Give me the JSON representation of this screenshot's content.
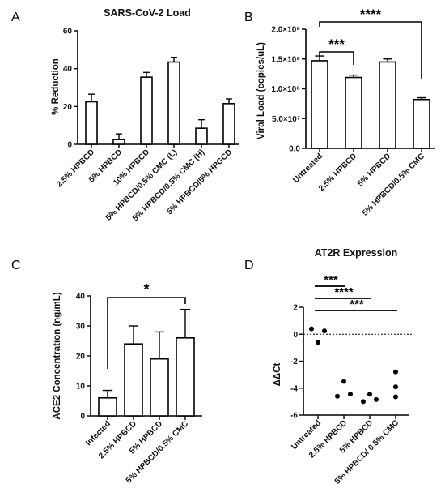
{
  "chart_data": [
    {
      "panel": "A",
      "type": "bar",
      "title": "SARS-CoV-2 Load",
      "ylabel": "% Reduction",
      "xlabel": "",
      "ylim": [
        0,
        60
      ],
      "yticks": [
        "0",
        "20",
        "40",
        "60"
      ],
      "categories": [
        "2.5% HPBCD",
        "5% HPBCD",
        "10% HPBCD",
        "5% HPBCD/0.5% CMC (L)",
        "5% HPBCD/0.5% CMC (H)",
        "5% HPBCD/5% HPGCD"
      ],
      "values": [
        22.5,
        2.5,
        35.5,
        43.5,
        8.5,
        21.5
      ],
      "errors": [
        4,
        3,
        2.5,
        2.5,
        4.5,
        2.5
      ],
      "significance": []
    },
    {
      "panel": "B",
      "type": "bar",
      "title": "",
      "ylabel": "Viral Load (copies/uL)",
      "xlabel": "",
      "ylim": [
        0,
        200000000
      ],
      "yticks": [
        "0.0",
        "5.0×10⁷",
        "1.0×10⁸",
        "1.5×10⁸",
        "2.0×10⁸"
      ],
      "categories": [
        "Untreated",
        "2.5% HPBCD",
        "5% HPBCD",
        "5% HPBCD/0.5% CMC"
      ],
      "values": [
        147000000,
        119000000,
        145000000,
        82000000
      ],
      "errors": [
        8000000,
        4000000,
        5000000,
        3000000
      ],
      "significance": [
        {
          "from": 0,
          "to": 1,
          "label": "***"
        },
        {
          "from": 0,
          "to": 3,
          "label": "****"
        }
      ]
    },
    {
      "panel": "C",
      "type": "bar",
      "title": "",
      "ylabel": "ACE2 Concentration (ng/mL)",
      "xlabel": "",
      "ylim": [
        0,
        40
      ],
      "yticks": [
        "0",
        "10",
        "20",
        "30",
        "40"
      ],
      "categories": [
        "Infected",
        "2.5% HPBCD",
        "5% HPBCD",
        "5% HPBCD/0.5% CMC"
      ],
      "values": [
        6,
        24,
        19,
        26
      ],
      "errors": [
        2.5,
        6,
        9,
        9.5
      ],
      "significance": [
        {
          "from": 0,
          "to": 3,
          "label": "*"
        }
      ]
    },
    {
      "panel": "D",
      "type": "scatter",
      "title": "AT2R Expression",
      "ylabel": "ΔΔCt",
      "xlabel": "",
      "ylim": [
        -6,
        2
      ],
      "yticks": [
        "-6",
        "-4",
        "-2",
        "0",
        "2"
      ],
      "categories": [
        "Untreated",
        "2.5% HPBCD",
        "5% HPBCD",
        "5% HPBCD/ 0.5% CMC"
      ],
      "points": [
        {
          "category": 0,
          "offset": -0.25,
          "y": 0.4
        },
        {
          "category": 0,
          "offset": 0.0,
          "y": -0.6
        },
        {
          "category": 0,
          "offset": 0.25,
          "y": 0.25
        },
        {
          "category": 1,
          "offset": -0.25,
          "y": -4.6
        },
        {
          "category": 1,
          "offset": 0.0,
          "y": -3.5
        },
        {
          "category": 1,
          "offset": 0.25,
          "y": -4.45
        },
        {
          "category": 2,
          "offset": -0.25,
          "y": -5.0
        },
        {
          "category": 2,
          "offset": 0.0,
          "y": -4.45
        },
        {
          "category": 2,
          "offset": 0.25,
          "y": -4.85
        },
        {
          "category": 3,
          "offset": 0.0,
          "y": -2.8
        },
        {
          "category": 3,
          "offset": 0.0,
          "y": -3.9
        },
        {
          "category": 3,
          "offset": 0.0,
          "y": -4.65
        }
      ],
      "reference_line": 0,
      "significance": [
        {
          "from": 0,
          "to": 1,
          "label": "***"
        },
        {
          "from": 0,
          "to": 2,
          "label": "****"
        },
        {
          "from": 0,
          "to": 3,
          "label": "***"
        }
      ]
    }
  ]
}
